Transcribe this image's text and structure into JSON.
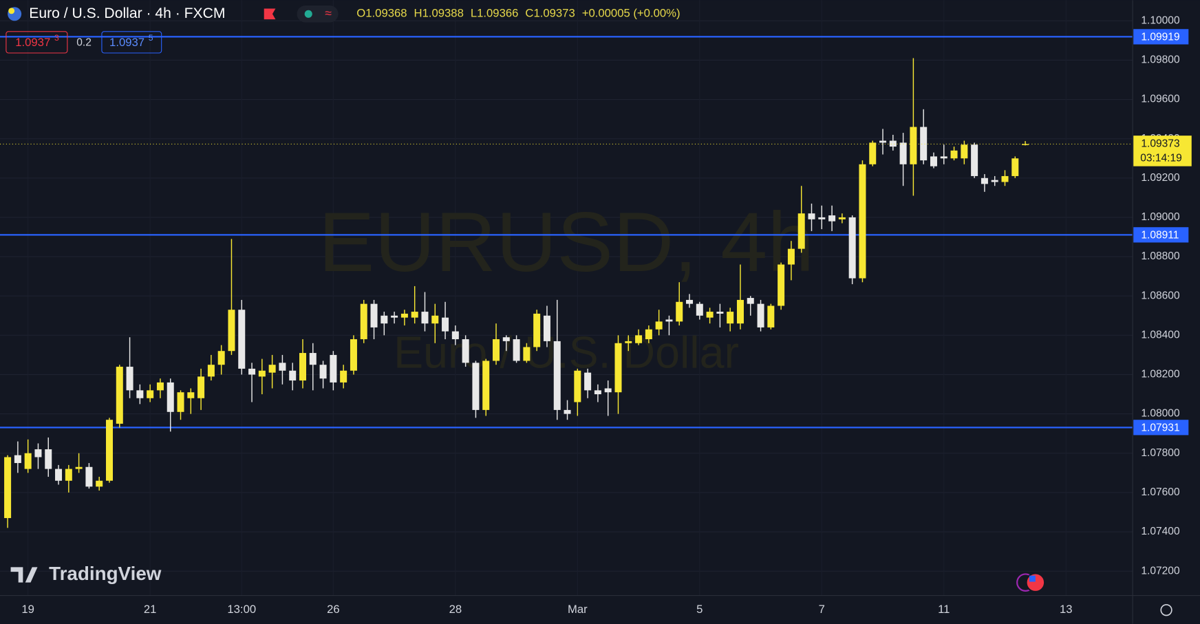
{
  "chart_data": {
    "type": "candlestick",
    "title": "Euro / U.S. Dollar · 4h · FXCM",
    "ohlc_readout": [
      "O1.09368",
      "H1.09388",
      "L1.09366",
      "C1.09373",
      "+0.00005 (+0.00%)"
    ],
    "bid": {
      "price": "1.0937",
      "pip": "3"
    },
    "spread": "0.2",
    "ask": {
      "price": "1.0937",
      "pip": "5"
    },
    "watermark": [
      "EURUSD, 4h",
      "Euro / U.S. Dollar"
    ],
    "brand": "TradingView",
    "countdown": "03:14:19",
    "last_price": 1.09373,
    "levels": [
      1.09919,
      1.08911,
      1.07931
    ],
    "up_color": "#f7e733",
    "down_color": "#e8e8e8",
    "level_color": "#2962ff",
    "categories": [
      null,
      null,
      "19",
      null,
      null,
      null,
      null,
      null,
      null,
      null,
      null,
      null,
      null,
      null,
      "21",
      null,
      null,
      null,
      null,
      null,
      null,
      null,
      null,
      "13:00",
      null,
      null,
      null,
      null,
      null,
      null,
      null,
      null,
      "26",
      null,
      null,
      null,
      null,
      null,
      null,
      null,
      null,
      null,
      null,
      null,
      "28",
      null,
      null,
      null,
      null,
      null,
      null,
      null,
      null,
      null,
      null,
      null,
      "Mar",
      null,
      null,
      null,
      null,
      null,
      null,
      null,
      null,
      null,
      null,
      null,
      "5",
      null,
      null,
      null,
      null,
      null,
      null,
      null,
      null,
      null,
      null,
      null,
      "7",
      null,
      null,
      null,
      null,
      null,
      null,
      null,
      null,
      null,
      null,
      null,
      "11",
      null,
      null,
      null,
      null,
      null,
      null,
      null,
      null,
      null,
      null,
      null,
      "13",
      null,
      null,
      null,
      null,
      null,
      null
    ],
    "open": [
      1.0747,
      1.0779,
      1.0772,
      1.0782,
      1.0782,
      1.0772,
      1.0766,
      1.0772,
      1.0773,
      1.0763,
      1.0766,
      1.0795,
      1.0824,
      1.0812,
      1.0808,
      1.0812,
      1.0816,
      1.0801,
      1.0808,
      1.0808,
      1.0819,
      1.0825,
      1.0832,
      1.0853,
      1.0823,
      1.0819,
      1.0821,
      1.0826,
      1.0822,
      1.0817,
      1.0831,
      1.0825,
      1.083,
      1.0816,
      1.0822,
      1.0838,
      1.0856,
      1.085,
      1.085,
      1.0849,
      1.0849,
      1.0852,
      1.0846,
      1.0849,
      1.0842,
      1.0838,
      1.0826,
      1.0802,
      1.0827,
      1.0839,
      1.0838,
      1.0827,
      1.0834,
      1.085,
      1.0837,
      1.0802,
      1.0806,
      1.0821,
      1.0812,
      1.0813,
      1.0811,
      1.0836,
      1.0836,
      1.0838,
      1.0843,
      1.0848,
      1.0847,
      1.0858,
      1.0856,
      1.0849,
      1.0852,
      1.0846,
      1.0846,
      1.0859,
      1.0856,
      1.0844,
      1.0855,
      1.0876,
      1.0884,
      1.0902,
      1.09,
      1.0901,
      1.0899,
      1.09,
      1.0869,
      1.0927,
      1.0939,
      1.0939,
      1.0938,
      1.0927,
      1.0946,
      1.0931,
      1.0931,
      1.093,
      1.093,
      1.0937,
      1.092,
      1.0919,
      1.0918,
      1.0921,
      1.09368,
      null,
      null,
      null,
      null,
      null,
      null,
      null,
      null,
      null,
      null
    ],
    "high": [
      1.0779,
      1.0786,
      1.0787,
      1.0785,
      1.0788,
      1.0774,
      1.0774,
      1.078,
      1.0775,
      1.0768,
      1.0798,
      1.0825,
      1.0839,
      1.0815,
      1.0815,
      1.0818,
      1.0818,
      1.0812,
      1.0813,
      1.0823,
      1.083,
      1.0835,
      1.0889,
      1.0858,
      1.0826,
      1.0828,
      1.083,
      1.083,
      1.0826,
      1.0838,
      1.0836,
      1.0827,
      1.0832,
      1.0825,
      1.084,
      1.0858,
      1.0858,
      1.0852,
      1.0852,
      1.0853,
      1.0865,
      1.0862,
      1.0856,
      1.0857,
      1.0845,
      1.084,
      1.0827,
      1.0828,
      1.0846,
      1.084,
      1.084,
      1.0836,
      1.0853,
      1.0855,
      1.0858,
      1.0807,
      1.0823,
      1.0823,
      1.0815,
      1.0817,
      1.084,
      1.084,
      1.0843,
      1.0845,
      1.0853,
      1.085,
      1.0867,
      1.0861,
      1.0857,
      1.0854,
      1.0856,
      1.0854,
      1.0876,
      1.086,
      1.0858,
      1.0856,
      1.0877,
      1.0888,
      1.0916,
      1.0907,
      1.0906,
      1.0906,
      1.0902,
      1.0901,
      1.0929,
      1.0939,
      1.0945,
      1.0942,
      1.0943,
      1.0981,
      1.0955,
      1.0933,
      1.0937,
      1.0936,
      1.0939,
      1.0938,
      1.0922,
      1.0921,
      1.0924,
      1.0931,
      1.09388,
      null,
      null,
      null,
      null,
      null,
      null,
      null,
      null,
      null,
      null
    ],
    "low": [
      1.0742,
      1.077,
      1.077,
      1.0772,
      1.0768,
      1.0764,
      1.076,
      1.077,
      1.0762,
      1.0761,
      1.0765,
      1.0793,
      1.0808,
      1.0805,
      1.0806,
      1.0808,
      1.0791,
      1.0797,
      1.08,
      1.0802,
      1.0817,
      1.082,
      1.083,
      1.082,
      1.0806,
      1.081,
      1.0813,
      1.0815,
      1.0812,
      1.0813,
      1.0812,
      1.0813,
      1.0812,
      1.0813,
      1.082,
      1.0836,
      1.0838,
      1.084,
      1.0846,
      1.0845,
      1.0846,
      1.0842,
      1.0836,
      1.0838,
      1.0835,
      1.0824,
      1.0798,
      1.0799,
      1.0825,
      1.0832,
      1.0826,
      1.0826,
      1.0832,
      1.0834,
      1.0797,
      1.0797,
      1.0799,
      1.0808,
      1.0806,
      1.0799,
      1.08,
      1.0832,
      1.0835,
      1.0836,
      1.084,
      1.084,
      1.0845,
      1.0854,
      1.0848,
      1.0846,
      1.0844,
      1.0842,
      1.0843,
      1.085,
      1.0842,
      1.0843,
      1.0853,
      1.0868,
      1.0882,
      1.0893,
      1.0894,
      1.0893,
      1.0897,
      1.0866,
      1.0867,
      1.0926,
      1.0932,
      1.0934,
      1.0916,
      1.0911,
      1.0927,
      1.0925,
      1.0927,
      1.0929,
      1.0927,
      1.092,
      1.0913,
      1.0916,
      1.0916,
      1.092,
      1.09366,
      null,
      null,
      null,
      null,
      null,
      null,
      null,
      null,
      null,
      null
    ],
    "close": [
      1.0778,
      1.0775,
      1.078,
      1.0778,
      1.0772,
      1.0766,
      1.0772,
      1.0773,
      1.0763,
      1.0766,
      1.0797,
      1.0824,
      1.0812,
      1.0808,
      1.0812,
      1.0816,
      1.0801,
      1.0811,
      1.0811,
      1.0819,
      1.0825,
      1.0832,
      1.0853,
      1.0823,
      1.082,
      1.0822,
      1.0825,
      1.0822,
      1.0817,
      1.0831,
      1.0825,
      1.0818,
      1.0816,
      1.0822,
      1.0838,
      1.0856,
      1.0844,
      1.0846,
      1.0849,
      1.0851,
      1.0852,
      1.0846,
      1.085,
      1.0842,
      1.0838,
      1.0826,
      1.0802,
      1.0827,
      1.0838,
      1.0837,
      1.0827,
      1.0834,
      1.0851,
      1.0837,
      1.0802,
      1.08,
      1.0822,
      1.0812,
      1.081,
      1.0811,
      1.0836,
      1.0837,
      1.084,
      1.0843,
      1.0847,
      1.0847,
      1.0857,
      1.0856,
      1.085,
      1.0852,
      1.0851,
      1.0852,
      1.0858,
      1.0856,
      1.0844,
      1.0855,
      1.0876,
      1.0884,
      1.0902,
      1.0899,
      1.0899,
      1.0898,
      1.09,
      1.0869,
      1.0927,
      1.0938,
      1.0938,
      1.0936,
      1.0927,
      1.0946,
      1.0929,
      1.0926,
      1.093,
      1.0934,
      1.0937,
      1.0921,
      1.0917,
      1.0918,
      1.0921,
      1.093,
      1.09373,
      null,
      null,
      null,
      null,
      null,
      null,
      null,
      null,
      null,
      null
    ],
    "ylim": [
      1.07076,
      1.10105
    ],
    "yticks": [
      {
        "value": 1.072,
        "label": "1.07200"
      },
      {
        "value": 1.074,
        "label": "1.07400"
      },
      {
        "value": 1.076,
        "label": "1.07600"
      },
      {
        "value": 1.078,
        "label": "1.07800"
      },
      {
        "value": 1.08,
        "label": "1.08000"
      },
      {
        "value": 1.082,
        "label": "1.08200"
      },
      {
        "value": 1.084,
        "label": "1.08400"
      },
      {
        "value": 1.086,
        "label": "1.08600"
      },
      {
        "value": 1.088,
        "label": "1.08800"
      },
      {
        "value": 1.09,
        "label": "1.09000"
      },
      {
        "value": 1.092,
        "label": "1.09200"
      },
      {
        "value": 1.094,
        "label": "1.09400"
      },
      {
        "value": 1.096,
        "label": "1.09600"
      },
      {
        "value": 1.098,
        "label": "1.09800"
      },
      {
        "value": 1.1,
        "label": "1.10000"
      }
    ],
    "grid": true
  }
}
